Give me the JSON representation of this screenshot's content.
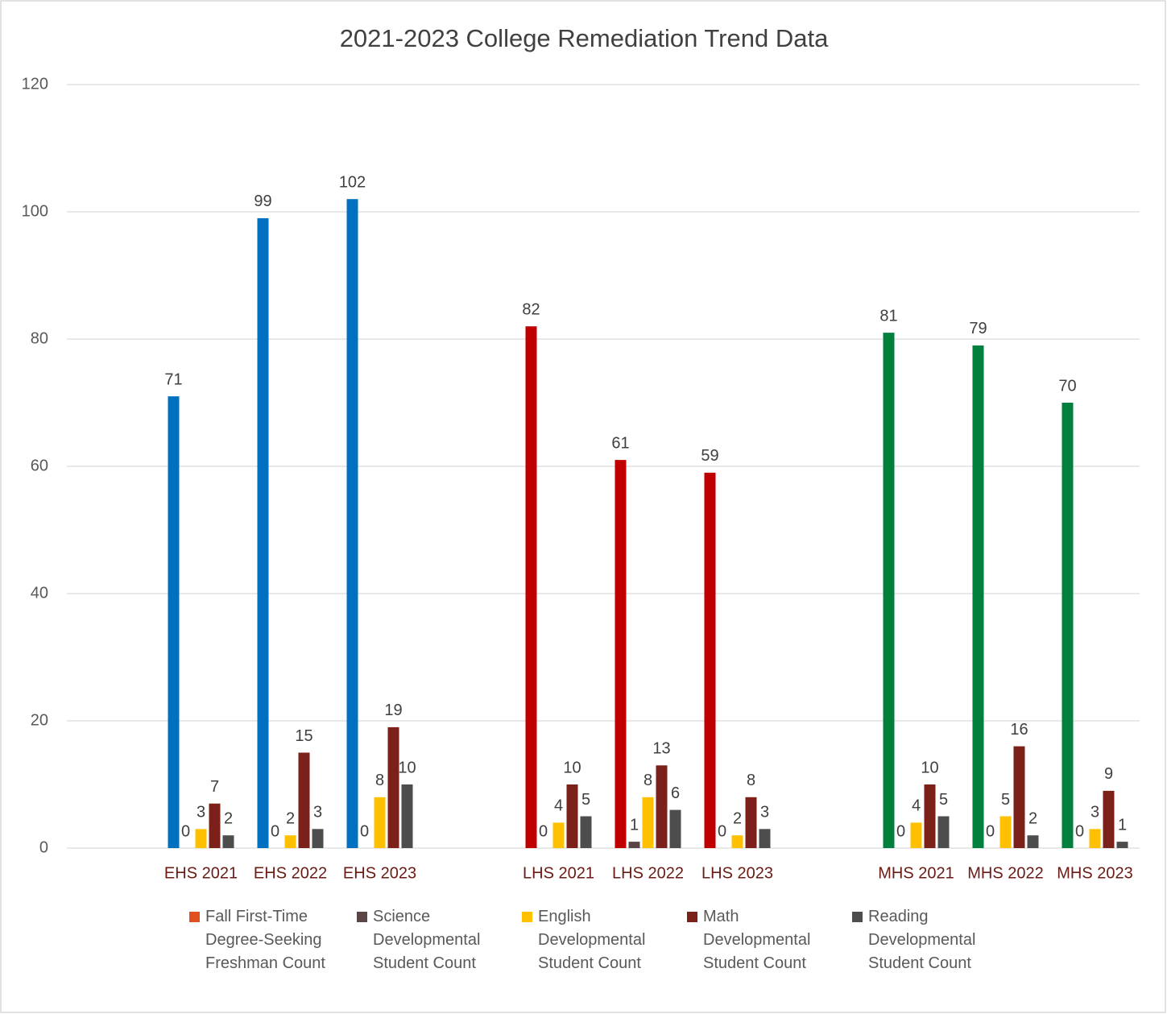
{
  "chart_data": {
    "type": "bar",
    "title": "2021-2023 College Remediation Trend Data",
    "categories": [
      null,
      "EHS 2021",
      "EHS 2022",
      "EHS 2023",
      null,
      "LHS 2021",
      "LHS 2022",
      "LHS 2023",
      null,
      "MHS 2021",
      "MHS 2022",
      "MHS 2023"
    ],
    "series": [
      {
        "name": "Fall First-Time Degree-Seeking Freshman Count",
        "color": "#e2501f",
        "colors": [
          null,
          "#0070c0",
          "#0070c0",
          "#0070c0",
          null,
          "#c00000",
          "#c00000",
          "#c00000",
          null,
          "#00803c",
          "#00803c",
          "#00803c"
        ],
        "values": [
          null,
          71,
          99,
          102,
          null,
          82,
          61,
          59,
          null,
          81,
          79,
          70
        ]
      },
      {
        "name": "Science Developmental Student Count",
        "color": "#5b4444",
        "values": [
          null,
          0,
          0,
          0,
          null,
          0,
          1,
          0,
          null,
          0,
          0,
          0
        ]
      },
      {
        "name": "English Developmental Student Count",
        "color": "#ffc000",
        "values": [
          null,
          3,
          2,
          8,
          null,
          4,
          8,
          2,
          null,
          4,
          5,
          3
        ]
      },
      {
        "name": "Math Developmental Student Count",
        "color": "#7b2119",
        "values": [
          null,
          7,
          15,
          19,
          null,
          10,
          13,
          8,
          null,
          10,
          16,
          9
        ]
      },
      {
        "name": "Reading Developmental Student Count",
        "color": "#4d4d4d",
        "values": [
          null,
          2,
          3,
          10,
          null,
          5,
          6,
          3,
          null,
          5,
          2,
          1
        ]
      }
    ],
    "ylim": [
      0,
      120
    ],
    "yticks": [
      0,
      20,
      40,
      60,
      80,
      100,
      120
    ],
    "grid": true,
    "legend": "bottom"
  }
}
